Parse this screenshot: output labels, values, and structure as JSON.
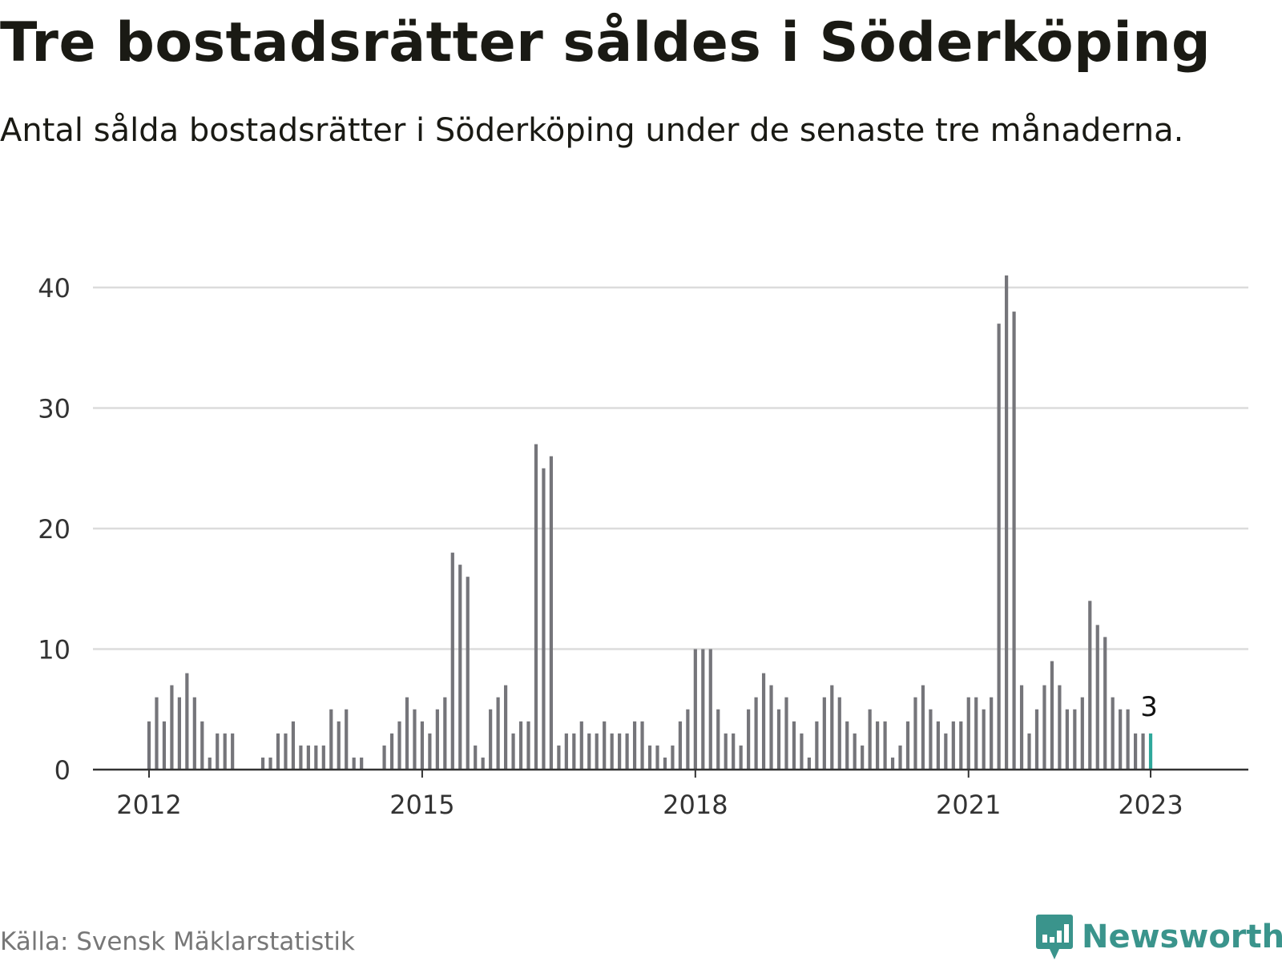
{
  "title": "Tre bostadsrätter såldes i Söderköping",
  "subtitle": "Antal sålda bostadsrätter i Söderköping under de senaste tre månaderna.",
  "source": "Källa: Svensk Mäklarstatistik",
  "brand": {
    "name": "Newsworthy",
    "icon": "newsworthy-logo-icon"
  },
  "colors": {
    "bar": "#75757a",
    "highlight": "#2fa89b",
    "grid": "#dcdcdc",
    "axis": "#333333",
    "brand": "#3a948c"
  },
  "chart_data": {
    "type": "bar",
    "ylim": [
      0,
      40
    ],
    "yticks": [
      0,
      10,
      20,
      30,
      40
    ],
    "xticks": [
      {
        "label": "2012",
        "index": 0
      },
      {
        "label": "2015",
        "index": 36
      },
      {
        "label": "2018",
        "index": 72
      },
      {
        "label": "2021",
        "index": 108
      },
      {
        "label": "2023",
        "index": 132
      }
    ],
    "start": "2012-01",
    "frequency": "monthly",
    "values": [
      4,
      6,
      4,
      7,
      6,
      8,
      6,
      4,
      1,
      3,
      3,
      3,
      null,
      null,
      null,
      1,
      1,
      3,
      3,
      4,
      2,
      2,
      2,
      2,
      5,
      4,
      5,
      1,
      1,
      null,
      null,
      2,
      3,
      4,
      6,
      5,
      4,
      3,
      5,
      6,
      18,
      17,
      16,
      2,
      1,
      5,
      6,
      7,
      3,
      4,
      4,
      27,
      25,
      26,
      2,
      3,
      3,
      4,
      3,
      3,
      4,
      3,
      3,
      3,
      4,
      4,
      2,
      2,
      1,
      2,
      4,
      5,
      10,
      10,
      10,
      5,
      3,
      3,
      2,
      5,
      6,
      8,
      7,
      5,
      6,
      4,
      3,
      1,
      4,
      6,
      7,
      6,
      4,
      3,
      2,
      5,
      4,
      4,
      1,
      2,
      4,
      6,
      7,
      5,
      4,
      3,
      4,
      4,
      6,
      6,
      5,
      6,
      37,
      41,
      38,
      7,
      3,
      5,
      7,
      9,
      7,
      5,
      5,
      6,
      14,
      12,
      11,
      6,
      5,
      5,
      3,
      3,
      3
    ],
    "highlight_index": 132,
    "highlight_label": "3"
  }
}
